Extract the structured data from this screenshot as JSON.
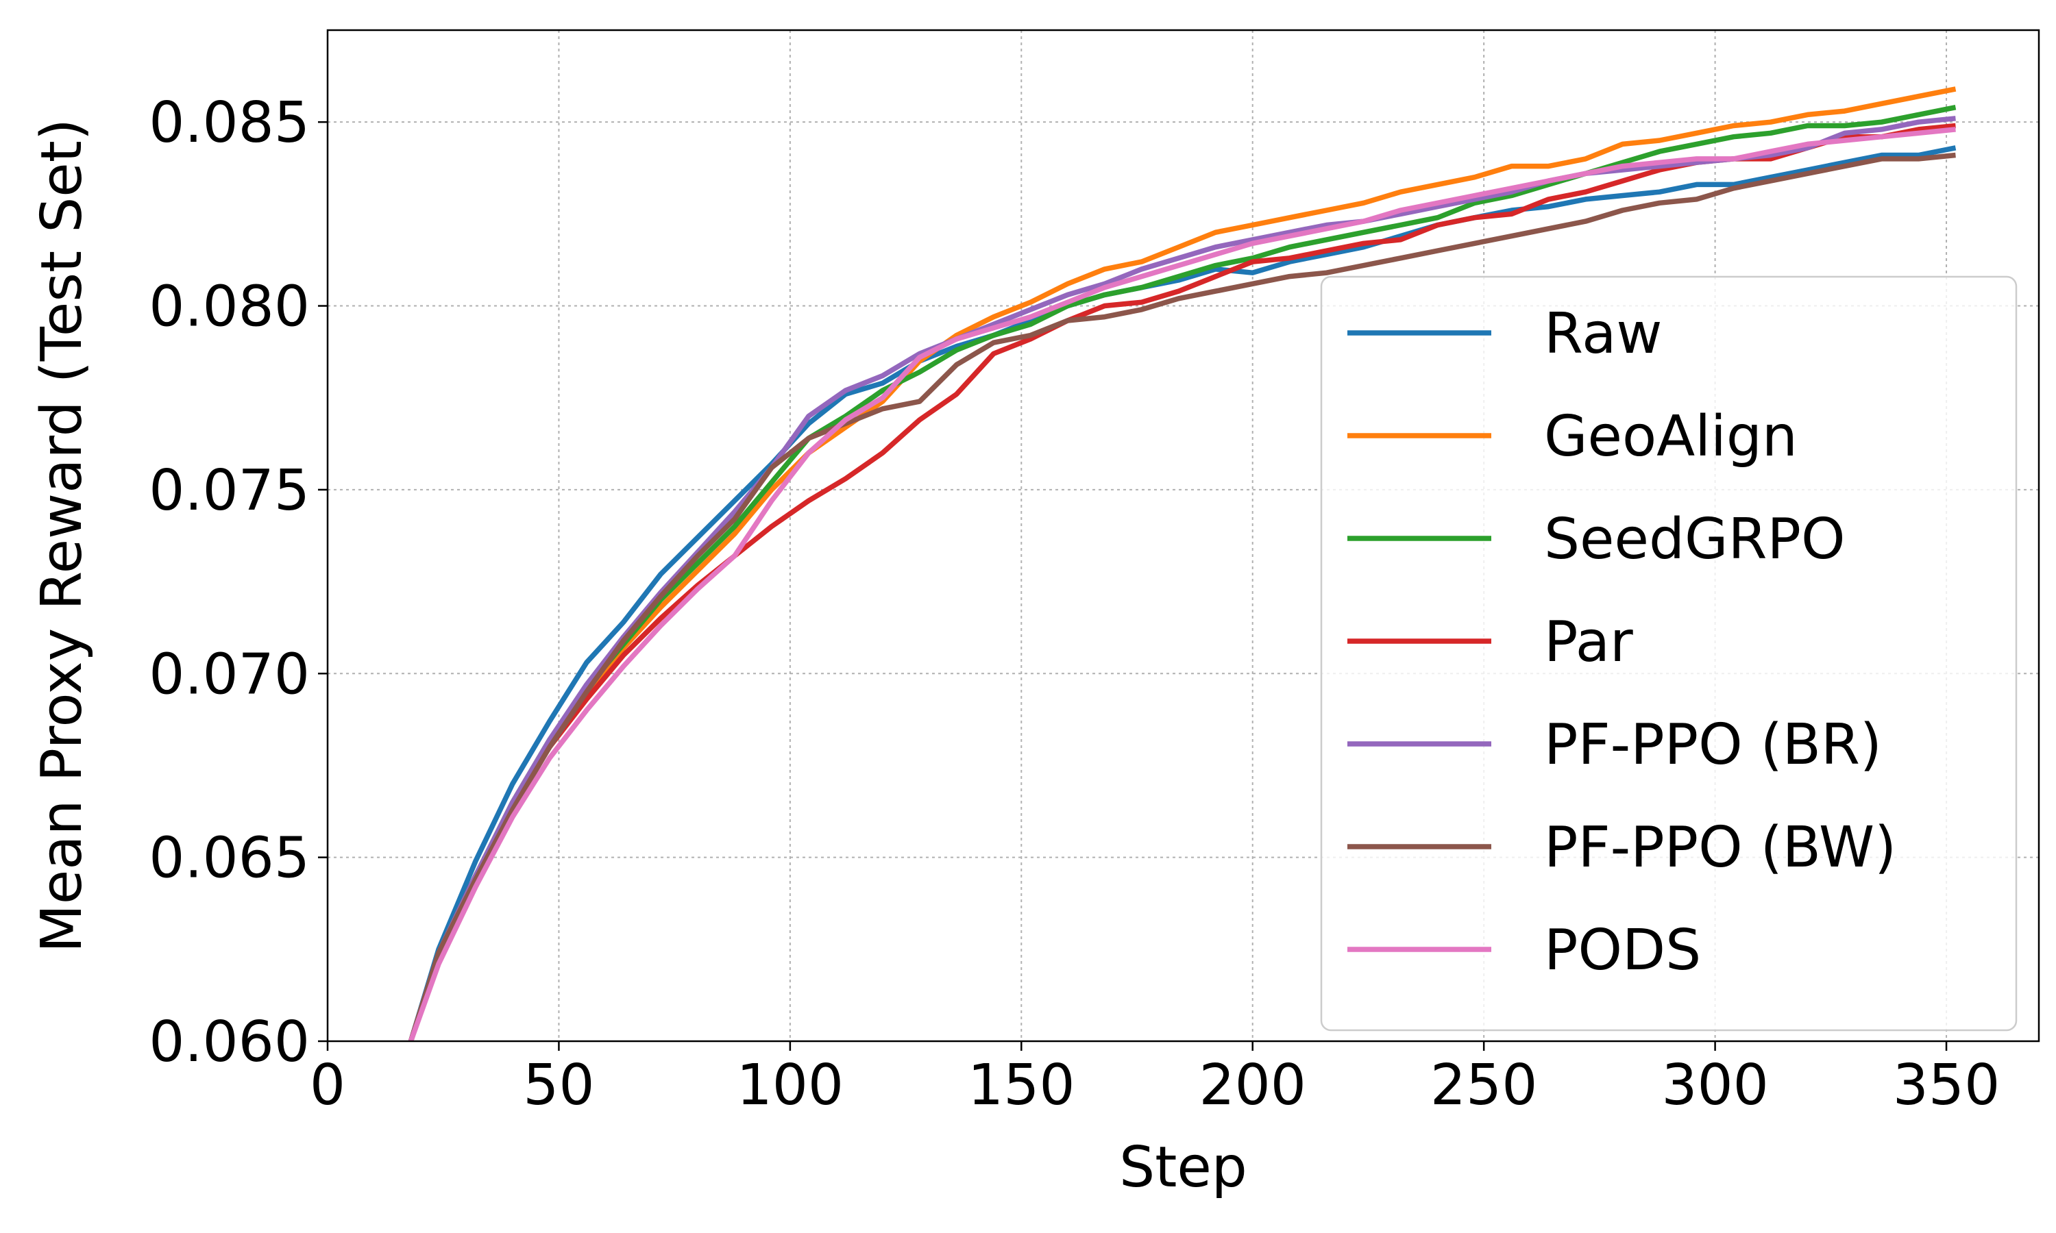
{
  "chart_data": {
    "type": "line",
    "xlabel": "Step",
    "ylabel": "Mean Proxy Reward (Test Set)",
    "xlim": [
      0,
      370
    ],
    "ylim": [
      0.06,
      0.0875
    ],
    "xticks": [
      "0",
      "50",
      "100",
      "150",
      "200",
      "250",
      "300",
      "350"
    ],
    "yticks": [
      "0.060",
      "0.065",
      "0.070",
      "0.075",
      "0.080",
      "0.085"
    ],
    "grid": true,
    "legend_position": "lower-right",
    "series": [
      {
        "name": "Raw",
        "color": "#1f77b4",
        "x": [
          18,
          24,
          32,
          40,
          48,
          56,
          64,
          72,
          80,
          88,
          96,
          104,
          112,
          120,
          128,
          136,
          144,
          152,
          160,
          168,
          176,
          184,
          192,
          200,
          208,
          216,
          224,
          232,
          240,
          248,
          256,
          264,
          272,
          280,
          288,
          296,
          304,
          312,
          320,
          328,
          336,
          344,
          352
        ],
        "y": [
          0.06,
          0.0625,
          0.0649,
          0.067,
          0.0687,
          0.0703,
          0.0714,
          0.0727,
          0.0737,
          0.0747,
          0.0757,
          0.0768,
          0.0776,
          0.0779,
          0.0785,
          0.0789,
          0.0792,
          0.0796,
          0.08,
          0.0803,
          0.0805,
          0.0807,
          0.081,
          0.0809,
          0.0812,
          0.0814,
          0.0816,
          0.0819,
          0.0822,
          0.0824,
          0.0826,
          0.0827,
          0.0829,
          0.083,
          0.0831,
          0.0833,
          0.0833,
          0.0835,
          0.0837,
          0.0839,
          0.0841,
          0.0841,
          0.0843
        ]
      },
      {
        "name": "GeoAlign",
        "color": "#ff7f0e",
        "x": [
          18,
          24,
          32,
          40,
          48,
          56,
          64,
          72,
          80,
          88,
          96,
          104,
          112,
          120,
          128,
          136,
          144,
          152,
          160,
          168,
          176,
          184,
          192,
          200,
          208,
          216,
          224,
          232,
          240,
          248,
          256,
          264,
          272,
          280,
          288,
          296,
          304,
          312,
          320,
          328,
          336,
          344,
          352
        ],
        "y": [
          0.06,
          0.0624,
          0.0645,
          0.0664,
          0.0681,
          0.0694,
          0.0707,
          0.0718,
          0.0728,
          0.0738,
          0.075,
          0.076,
          0.0767,
          0.0774,
          0.0785,
          0.0792,
          0.0797,
          0.0801,
          0.0806,
          0.081,
          0.0812,
          0.0816,
          0.082,
          0.0822,
          0.0824,
          0.0826,
          0.0828,
          0.0831,
          0.0833,
          0.0835,
          0.0838,
          0.0838,
          0.084,
          0.0844,
          0.0845,
          0.0847,
          0.0849,
          0.085,
          0.0852,
          0.0853,
          0.0855,
          0.0857,
          0.0859
        ]
      },
      {
        "name": "SeedGRPO",
        "color": "#2ca02c",
        "x": [
          18,
          24,
          32,
          40,
          48,
          56,
          64,
          72,
          80,
          88,
          96,
          104,
          112,
          120,
          128,
          136,
          144,
          152,
          160,
          168,
          176,
          184,
          192,
          200,
          208,
          216,
          224,
          232,
          240,
          248,
          256,
          264,
          272,
          280,
          288,
          296,
          304,
          312,
          320,
          328,
          336,
          344,
          352
        ],
        "y": [
          0.06,
          0.0624,
          0.0645,
          0.0665,
          0.0682,
          0.0696,
          0.0708,
          0.072,
          0.073,
          0.074,
          0.0752,
          0.0764,
          0.077,
          0.0777,
          0.0782,
          0.0788,
          0.0792,
          0.0795,
          0.08,
          0.0803,
          0.0805,
          0.0808,
          0.0811,
          0.0813,
          0.0816,
          0.0818,
          0.082,
          0.0822,
          0.0824,
          0.0828,
          0.083,
          0.0833,
          0.0836,
          0.0839,
          0.0842,
          0.0844,
          0.0846,
          0.0847,
          0.0849,
          0.0849,
          0.085,
          0.0852,
          0.0854
        ]
      },
      {
        "name": "Par",
        "color": "#d62728",
        "x": [
          18,
          24,
          32,
          40,
          48,
          56,
          64,
          72,
          80,
          88,
          96,
          104,
          112,
          120,
          128,
          136,
          144,
          152,
          160,
          168,
          176,
          184,
          192,
          200,
          208,
          216,
          224,
          232,
          240,
          248,
          256,
          264,
          272,
          280,
          288,
          296,
          304,
          312,
          320,
          328,
          336,
          344,
          352
        ],
        "y": [
          0.06,
          0.0624,
          0.0645,
          0.0664,
          0.068,
          0.0693,
          0.0705,
          0.0715,
          0.0724,
          0.0732,
          0.074,
          0.0747,
          0.0753,
          0.076,
          0.0769,
          0.0776,
          0.0787,
          0.0791,
          0.0796,
          0.08,
          0.0801,
          0.0804,
          0.0808,
          0.0812,
          0.0813,
          0.0815,
          0.0817,
          0.0818,
          0.0822,
          0.0824,
          0.0825,
          0.0829,
          0.0831,
          0.0834,
          0.0837,
          0.0839,
          0.084,
          0.084,
          0.0843,
          0.0846,
          0.0846,
          0.0848,
          0.0849
        ]
      },
      {
        "name": "PF-PPO (BR)",
        "color": "#9467bd",
        "x": [
          18,
          24,
          32,
          40,
          48,
          56,
          64,
          72,
          80,
          88,
          96,
          104,
          112,
          120,
          128,
          136,
          144,
          152,
          160,
          168,
          176,
          184,
          192,
          200,
          208,
          216,
          224,
          232,
          240,
          248,
          256,
          264,
          272,
          280,
          288,
          296,
          304,
          312,
          320,
          328,
          336,
          344,
          352
        ],
        "y": [
          0.06,
          0.0624,
          0.0645,
          0.0665,
          0.0682,
          0.0697,
          0.071,
          0.0722,
          0.0733,
          0.0744,
          0.0756,
          0.077,
          0.0777,
          0.0781,
          0.0787,
          0.0791,
          0.0795,
          0.0799,
          0.0803,
          0.0806,
          0.081,
          0.0813,
          0.0816,
          0.0818,
          0.082,
          0.0822,
          0.0823,
          0.0825,
          0.0827,
          0.0829,
          0.0831,
          0.0834,
          0.0836,
          0.0837,
          0.0838,
          0.0839,
          0.084,
          0.0841,
          0.0843,
          0.0847,
          0.0848,
          0.085,
          0.0851
        ]
      },
      {
        "name": "PF-PPO (BW)",
        "color": "#8c564b",
        "x": [
          18,
          24,
          32,
          40,
          48,
          56,
          64,
          72,
          80,
          88,
          96,
          104,
          112,
          120,
          128,
          136,
          144,
          152,
          160,
          168,
          176,
          184,
          192,
          200,
          208,
          216,
          224,
          232,
          240,
          248,
          256,
          264,
          272,
          280,
          288,
          296,
          304,
          312,
          320,
          328,
          336,
          344,
          352
        ],
        "y": [
          0.06,
          0.0624,
          0.0644,
          0.0663,
          0.068,
          0.0695,
          0.0709,
          0.0721,
          0.0732,
          0.0742,
          0.0756,
          0.0764,
          0.0768,
          0.0772,
          0.0774,
          0.0784,
          0.079,
          0.0792,
          0.0796,
          0.0797,
          0.0799,
          0.0802,
          0.0804,
          0.0806,
          0.0808,
          0.0809,
          0.0811,
          0.0813,
          0.0815,
          0.0817,
          0.0819,
          0.0821,
          0.0823,
          0.0826,
          0.0828,
          0.0829,
          0.0832,
          0.0834,
          0.0836,
          0.0838,
          0.084,
          0.084,
          0.0841
        ]
      },
      {
        "name": "PODS",
        "color": "#e377c2",
        "x": [
          18,
          24,
          32,
          40,
          48,
          56,
          64,
          72,
          80,
          88,
          96,
          104,
          112,
          120,
          128,
          136,
          144,
          152,
          160,
          168,
          176,
          184,
          192,
          200,
          208,
          216,
          224,
          232,
          240,
          248,
          256,
          264,
          272,
          280,
          288,
          296,
          304,
          312,
          320,
          328,
          336,
          344,
          352
        ],
        "y": [
          0.06,
          0.0621,
          0.0642,
          0.0661,
          0.0677,
          0.069,
          0.0702,
          0.0713,
          0.0723,
          0.0732,
          0.0747,
          0.076,
          0.0769,
          0.0775,
          0.0786,
          0.0791,
          0.0794,
          0.0797,
          0.0801,
          0.0805,
          0.0808,
          0.0811,
          0.0814,
          0.0817,
          0.0819,
          0.0821,
          0.0823,
          0.0826,
          0.0828,
          0.083,
          0.0832,
          0.0834,
          0.0836,
          0.0838,
          0.0839,
          0.084,
          0.084,
          0.0842,
          0.0844,
          0.0845,
          0.0846,
          0.0847,
          0.0848
        ]
      }
    ]
  }
}
